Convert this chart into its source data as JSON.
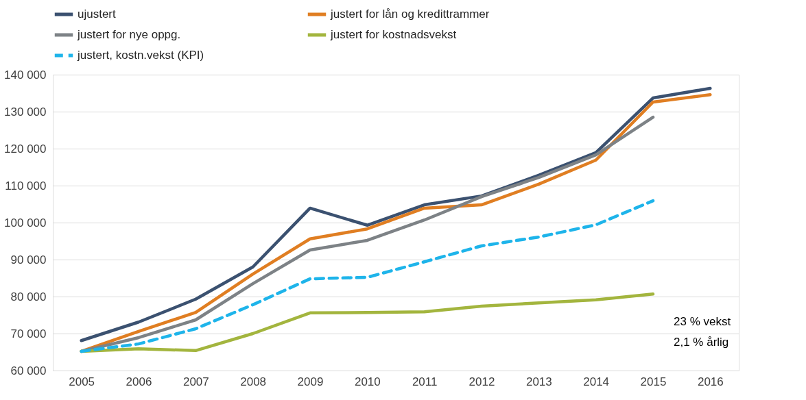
{
  "chart_data": {
    "type": "line",
    "categories": [
      "2005",
      "2006",
      "2007",
      "2008",
      "2009",
      "2010",
      "2011",
      "2012",
      "2013",
      "2014",
      "2015",
      "2016"
    ],
    "series": [
      {
        "name": "ujustert",
        "color": "#3b5170",
        "values": [
          68100,
          73100,
          79300,
          88000,
          103900,
          99300,
          104800,
          107200,
          112800,
          118900,
          133700,
          136300
        ]
      },
      {
        "name": "justert for lån og kredittrammer",
        "color": "#e07e22",
        "values": [
          65200,
          70600,
          75700,
          86100,
          95600,
          98300,
          103900,
          104800,
          110400,
          116900,
          132600,
          134600
        ]
      },
      {
        "name": "justert for nye oppg.",
        "color": "#7d8286",
        "values": [
          65200,
          68900,
          73700,
          83500,
          92600,
          95200,
          100700,
          107000,
          112200,
          118300,
          128500,
          null
        ]
      },
      {
        "name": "justert for kostnadsvekst",
        "color": "#a3b53e",
        "values": [
          65200,
          65900,
          65400,
          70000,
          75600,
          75700,
          75900,
          77400,
          78300,
          79100,
          80700,
          null
        ]
      },
      {
        "name": "justert, kostn.vekst (KPI)",
        "color": "#1eb4ea",
        "line_style": "dashed",
        "values": [
          65200,
          67200,
          71300,
          77800,
          84800,
          85200,
          89400,
          93700,
          96100,
          99400,
          105900,
          null
        ]
      }
    ],
    "ylim": [
      60000,
      140000
    ],
    "yticks": [
      {
        "value": 60000,
        "label": "60 000"
      },
      {
        "value": 70000,
        "label": "70 000"
      },
      {
        "value": 80000,
        "label": "80 000"
      },
      {
        "value": 90000,
        "label": "90 000"
      },
      {
        "value": 100000,
        "label": "100 000"
      },
      {
        "value": 110000,
        "label": "110 000"
      },
      {
        "value": 120000,
        "label": "120 000"
      },
      {
        "value": 130000,
        "label": "130 000"
      },
      {
        "value": 140000,
        "label": "140 000"
      }
    ],
    "grid": "y",
    "legend": "top",
    "line_style": "solid",
    "marker": "none",
    "annotations": [
      "23 % vekst",
      "2,1 % årlig"
    ]
  }
}
